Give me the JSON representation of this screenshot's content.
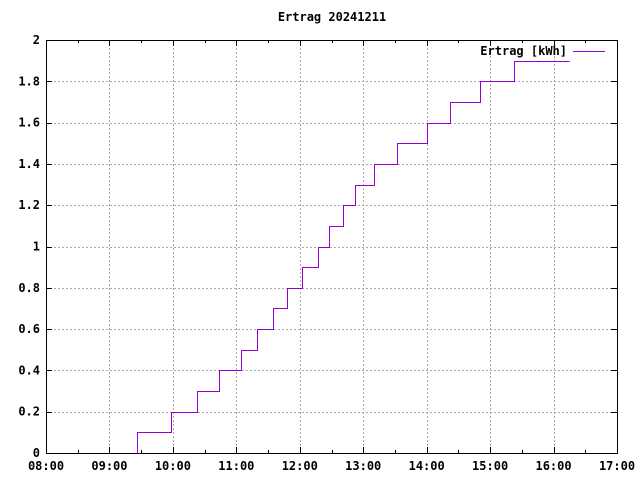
{
  "window": {
    "background": "#ffffff",
    "text_color": "#000000",
    "border_color": "#000000"
  },
  "chart_data": {
    "type": "line",
    "line_style": "steps",
    "title": "Ertrag 20241211",
    "legend": {
      "label": "Ertrag [kWh]",
      "position": "top-right-inside"
    },
    "line_color": "#9400d3",
    "grid": {
      "on": true,
      "color": "#a9a9a9",
      "dash": "2,2"
    },
    "x_axis": {
      "unit": "time",
      "min_hour": 8,
      "max_hour": 17,
      "tick_labels": [
        "08:00",
        "09:00",
        "10:00",
        "11:00",
        "12:00",
        "13:00",
        "14:00",
        "15:00",
        "16:00",
        "17:00"
      ],
      "minor_ticks_per_major": 2
    },
    "y_axis": {
      "unit": "kWh",
      "min": 0,
      "max": 2,
      "tick_step": 0.2,
      "tick_labels": [
        "0",
        "0.2",
        "0.4",
        "0.6",
        "0.8",
        "1",
        "1.2",
        "1.4",
        "1.6",
        "1.8",
        "2"
      ]
    },
    "series": [
      {
        "name": "Ertrag [kWh]",
        "start": {
          "time": "09:26",
          "kwh": 0
        },
        "steps": [
          {
            "time": "09:26",
            "kwh": 0.1
          },
          {
            "time": "09:58",
            "kwh": 0.2
          },
          {
            "time": "10:23",
            "kwh": 0.3
          },
          {
            "time": "10:44",
            "kwh": 0.4
          },
          {
            "time": "11:04",
            "kwh": 0.5
          },
          {
            "time": "11:20",
            "kwh": 0.6
          },
          {
            "time": "11:35",
            "kwh": 0.7
          },
          {
            "time": "11:48",
            "kwh": 0.8
          },
          {
            "time": "12:02",
            "kwh": 0.9
          },
          {
            "time": "12:17",
            "kwh": 1.0
          },
          {
            "time": "12:28",
            "kwh": 1.1
          },
          {
            "time": "12:41",
            "kwh": 1.2
          },
          {
            "time": "12:52",
            "kwh": 1.3
          },
          {
            "time": "13:10",
            "kwh": 1.4
          },
          {
            "time": "13:32",
            "kwh": 1.5
          },
          {
            "time": "14:00",
            "kwh": 1.6
          },
          {
            "time": "14:22",
            "kwh": 1.7
          },
          {
            "time": "14:50",
            "kwh": 1.8
          },
          {
            "time": "15:23",
            "kwh": 1.9
          }
        ],
        "end": {
          "time": "16:15",
          "kwh": 1.9
        }
      }
    ]
  }
}
